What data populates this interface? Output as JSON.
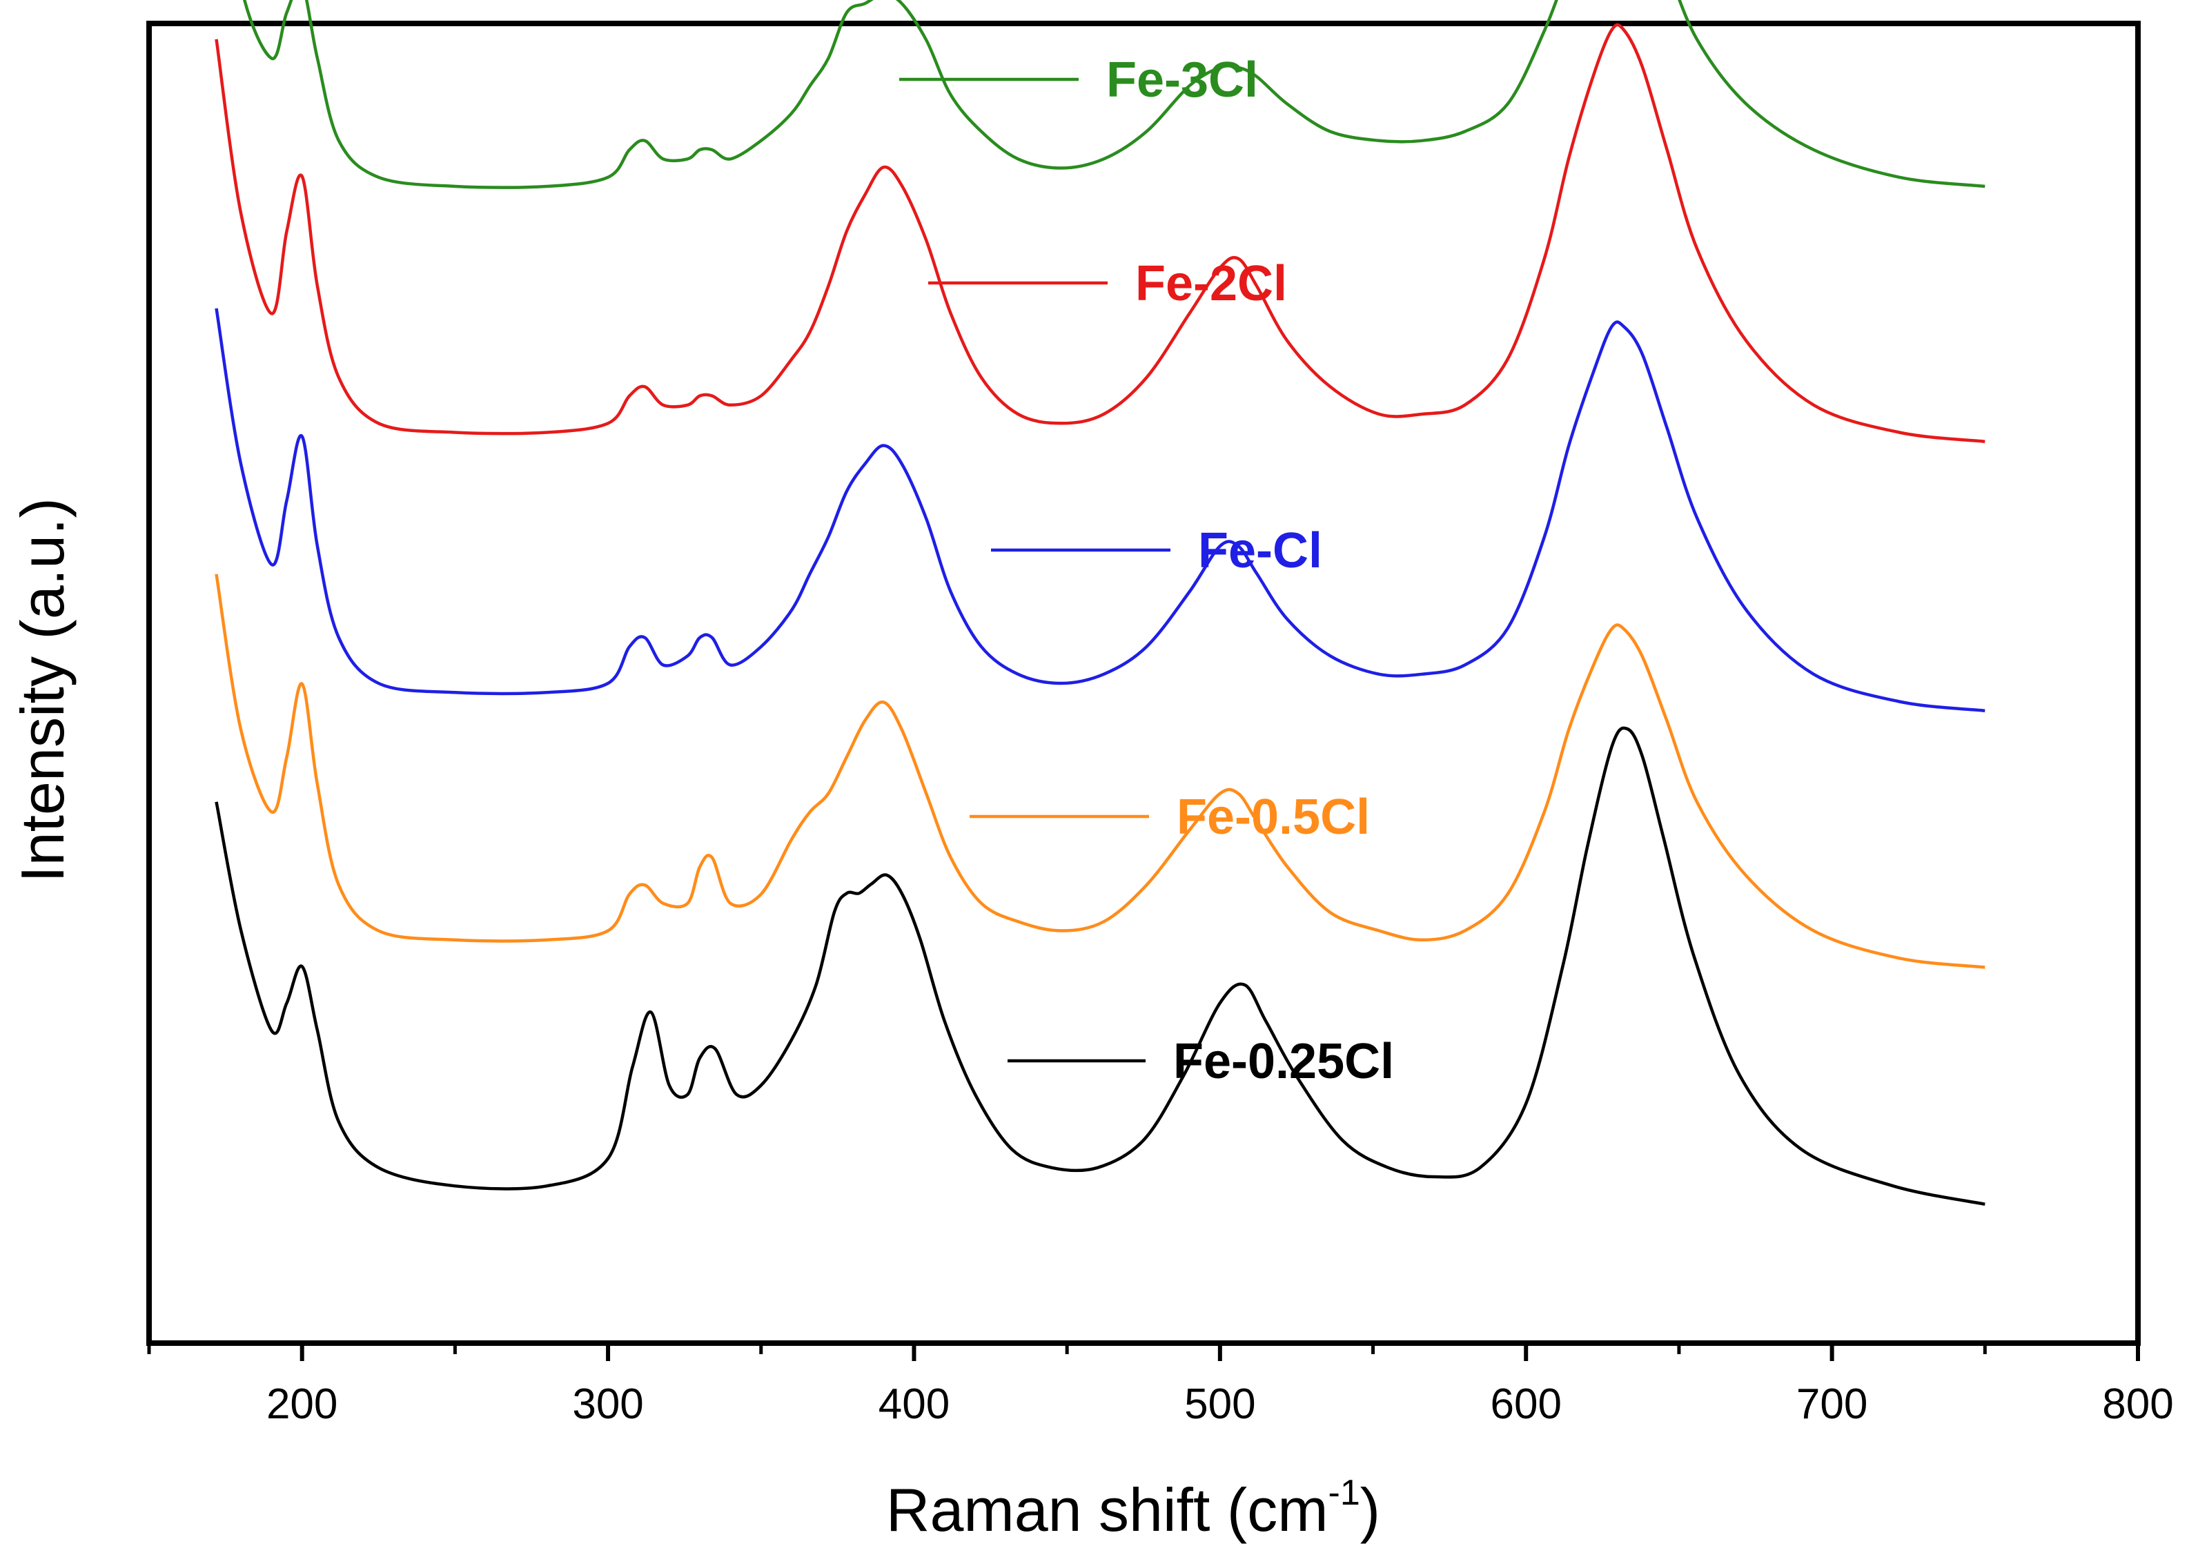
{
  "chart_data": {
    "type": "line",
    "title": "",
    "xlabel": "Raman shift (cm",
    "xlabel_sup": "-1",
    "xlabel_close": ")",
    "ylabel": "Intensity (a.u.)",
    "xlim": [
      150,
      800
    ],
    "xticks": [
      "200",
      "300",
      "400",
      "500",
      "600",
      "700",
      "800"
    ],
    "grid": false,
    "legend": "inline-labels",
    "series": [
      {
        "name": "Fe-0.25Cl",
        "color": "#000000",
        "x": [
          172,
          180,
          190,
          195,
          200,
          205,
          212,
          225,
          250,
          280,
          300,
          308,
          314,
          320,
          326,
          330,
          335,
          342,
          350,
          360,
          368,
          374,
          378,
          382,
          386,
          391,
          396,
          402,
          410,
          420,
          432,
          445,
          460,
          475,
          488,
          500,
          508,
          515,
          525,
          540,
          555,
          570,
          585,
          600,
          612,
          620,
          628,
          633,
          638,
          645,
          655,
          670,
          690,
          720,
          750
        ],
        "y": [
          4.05,
          3.35,
          2.8,
          2.95,
          3.15,
          2.8,
          2.3,
          2.05,
          1.95,
          1.95,
          2.1,
          2.6,
          2.9,
          2.5,
          2.45,
          2.65,
          2.7,
          2.45,
          2.5,
          2.75,
          3.05,
          3.45,
          3.55,
          3.55,
          3.6,
          3.65,
          3.55,
          3.3,
          2.85,
          2.45,
          2.15,
          2.05,
          2.05,
          2.2,
          2.55,
          2.95,
          3.05,
          2.85,
          2.55,
          2.2,
          2.05,
          2.0,
          2.05,
          2.4,
          3.15,
          3.8,
          4.35,
          4.45,
          4.3,
          3.85,
          3.2,
          2.55,
          2.15,
          1.95,
          1.85
        ]
      },
      {
        "name": "Fe-0.5Cl",
        "color": "#ff8c1a",
        "x": [
          172,
          180,
          190,
          195,
          200,
          205,
          212,
          225,
          250,
          280,
          300,
          307,
          312,
          318,
          326,
          330,
          334,
          340,
          350,
          360,
          366,
          372,
          378,
          384,
          390,
          396,
          404,
          412,
          422,
          434,
          448,
          462,
          476,
          490,
          500,
          506,
          512,
          522,
          536,
          552,
          566,
          580,
          594,
          606,
          614,
          622,
          628,
          632,
          638,
          646,
          656,
          672,
          694,
          722,
          750
        ],
        "y": [
          4.05,
          3.2,
          2.75,
          3.05,
          3.45,
          2.9,
          2.35,
          2.1,
          2.05,
          2.05,
          2.1,
          2.3,
          2.35,
          2.25,
          2.25,
          2.45,
          2.5,
          2.25,
          2.3,
          2.6,
          2.75,
          2.85,
          3.05,
          3.25,
          3.35,
          3.2,
          2.85,
          2.5,
          2.25,
          2.15,
          2.1,
          2.15,
          2.35,
          2.65,
          2.85,
          2.85,
          2.7,
          2.45,
          2.2,
          2.1,
          2.05,
          2.1,
          2.3,
          2.75,
          3.2,
          3.55,
          3.75,
          3.75,
          3.6,
          3.25,
          2.8,
          2.4,
          2.1,
          1.95,
          1.9
        ]
      },
      {
        "name": "Fe-Cl",
        "color": "#1f1fe6",
        "x": [
          172,
          180,
          190,
          195,
          200,
          205,
          212,
          225,
          250,
          280,
          300,
          307,
          312,
          318,
          326,
          330,
          334,
          340,
          350,
          360,
          366,
          372,
          378,
          384,
          390,
          396,
          404,
          412,
          422,
          434,
          448,
          462,
          476,
          490,
          500,
          506,
          512,
          522,
          536,
          552,
          566,
          580,
          594,
          606,
          614,
          622,
          628,
          632,
          638,
          646,
          656,
          672,
          694,
          722,
          750
        ],
        "y": [
          4.05,
          3.2,
          2.65,
          3.0,
          3.35,
          2.75,
          2.25,
          2.0,
          1.95,
          1.95,
          2.0,
          2.2,
          2.25,
          2.1,
          2.15,
          2.25,
          2.25,
          2.1,
          2.2,
          2.4,
          2.6,
          2.8,
          3.05,
          3.2,
          3.3,
          3.2,
          2.9,
          2.5,
          2.2,
          2.05,
          2.0,
          2.05,
          2.2,
          2.5,
          2.75,
          2.75,
          2.6,
          2.35,
          2.15,
          2.05,
          2.05,
          2.1,
          2.3,
          2.8,
          3.3,
          3.7,
          3.95,
          3.95,
          3.8,
          3.4,
          2.9,
          2.4,
          2.05,
          1.9,
          1.85
        ]
      },
      {
        "name": "Fe-2Cl",
        "color": "#e61a1a",
        "x": [
          172,
          180,
          190,
          195,
          200,
          205,
          212,
          225,
          250,
          280,
          300,
          307,
          312,
          318,
          326,
          330,
          334,
          340,
          350,
          360,
          366,
          372,
          378,
          384,
          390,
          396,
          404,
          412,
          422,
          434,
          448,
          462,
          476,
          490,
          500,
          506,
          512,
          522,
          536,
          552,
          566,
          580,
          594,
          606,
          614,
          622,
          628,
          632,
          638,
          646,
          656,
          672,
          694,
          722,
          750
        ],
        "y": [
          4.05,
          3.1,
          2.55,
          3.0,
          3.3,
          2.7,
          2.2,
          1.95,
          1.9,
          1.9,
          1.95,
          2.1,
          2.15,
          2.05,
          2.05,
          2.1,
          2.1,
          2.05,
          2.1,
          2.3,
          2.45,
          2.7,
          3.0,
          3.2,
          3.35,
          3.25,
          2.95,
          2.55,
          2.2,
          2.0,
          1.95,
          2.0,
          2.2,
          2.55,
          2.8,
          2.85,
          2.7,
          2.4,
          2.15,
          2.0,
          2.0,
          2.05,
          2.3,
          2.85,
          3.4,
          3.85,
          4.1,
          4.1,
          3.9,
          3.45,
          2.9,
          2.4,
          2.05,
          1.9,
          1.85
        ]
      },
      {
        "name": "Fe-3Cl",
        "color": "#2a8c1e",
        "x": [
          172,
          180,
          190,
          195,
          200,
          205,
          212,
          225,
          250,
          280,
          300,
          307,
          312,
          318,
          326,
          330,
          334,
          340,
          350,
          360,
          366,
          372,
          378,
          384,
          390,
          396,
          404,
          412,
          422,
          434,
          448,
          462,
          476,
          490,
          500,
          506,
          512,
          522,
          536,
          552,
          566,
          580,
          594,
          606,
          614,
          622,
          628,
          632,
          638,
          646,
          656,
          672,
          694,
          722,
          750
        ],
        "y": [
          4.05,
          3.1,
          2.7,
          2.95,
          3.1,
          2.7,
          2.25,
          2.05,
          2.0,
          2.0,
          2.05,
          2.2,
          2.25,
          2.15,
          2.15,
          2.2,
          2.2,
          2.15,
          2.25,
          2.4,
          2.55,
          2.7,
          2.95,
          3.0,
          3.05,
          3.0,
          2.8,
          2.5,
          2.3,
          2.15,
          2.1,
          2.15,
          2.3,
          2.55,
          2.65,
          2.65,
          2.6,
          2.45,
          2.3,
          2.25,
          2.25,
          2.3,
          2.45,
          2.85,
          3.2,
          3.5,
          3.6,
          3.6,
          3.5,
          3.2,
          2.8,
          2.45,
          2.2,
          2.05,
          2.0
        ]
      }
    ]
  }
}
